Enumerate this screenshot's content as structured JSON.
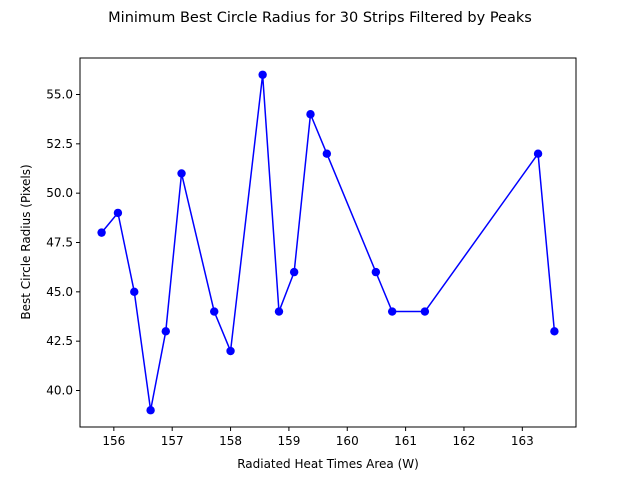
{
  "chart_data": {
    "type": "line",
    "title": "Minimum Best Circle Radius for 30 Strips Filtered by Peaks",
    "xlabel": "Radiated Heat Times Area (W)",
    "ylabel": "Best Circle Radius (Pixels)",
    "xlim": [
      155.42,
      163.92
    ],
    "ylim": [
      38.15,
      56.85
    ],
    "xticks": [
      156,
      157,
      158,
      159,
      160,
      161,
      162,
      163
    ],
    "xtick_labels": [
      "156",
      "157",
      "158",
      "159",
      "160",
      "161",
      "162",
      "163"
    ],
    "yticks": [
      40.0,
      42.5,
      45.0,
      47.5,
      50.0,
      52.5,
      55.0
    ],
    "ytick_labels": [
      "40.0",
      "42.5",
      "45.0",
      "47.5",
      "50.0",
      "52.5",
      "55.0"
    ],
    "grid": false,
    "series": [
      {
        "color": "#0000ff",
        "marker": "circle",
        "points": [
          {
            "x": 155.79,
            "y": 48
          },
          {
            "x": 156.07,
            "y": 49
          },
          {
            "x": 156.35,
            "y": 45
          },
          {
            "x": 156.63,
            "y": 39
          },
          {
            "x": 156.89,
            "y": 43
          },
          {
            "x": 157.16,
            "y": 51
          },
          {
            "x": 157.72,
            "y": 44
          },
          {
            "x": 158.0,
            "y": 42
          },
          {
            "x": 158.55,
            "y": 56
          },
          {
            "x": 158.83,
            "y": 44
          },
          {
            "x": 159.09,
            "y": 46
          },
          {
            "x": 159.37,
            "y": 54
          },
          {
            "x": 159.65,
            "y": 52
          },
          {
            "x": 160.49,
            "y": 46
          },
          {
            "x": 160.77,
            "y": 44
          },
          {
            "x": 161.33,
            "y": 44
          },
          {
            "x": 163.27,
            "y": 52
          },
          {
            "x": 163.55,
            "y": 43
          }
        ]
      }
    ]
  }
}
